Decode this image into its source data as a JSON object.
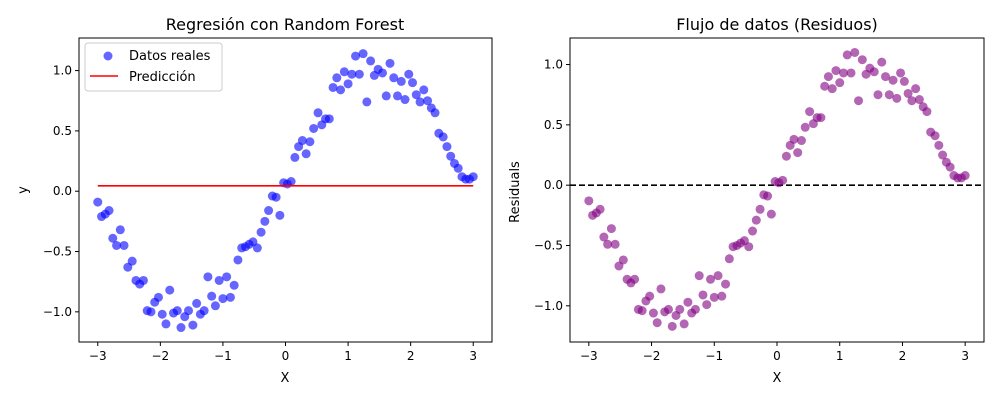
{
  "chart_data": [
    {
      "type": "scatter",
      "title": "Regresión con Random Forest",
      "xlabel": "X",
      "ylabel": "y",
      "xlim": [
        -3.3,
        3.3
      ],
      "ylim": [
        -1.25,
        1.27
      ],
      "xticks": [
        -3,
        -2,
        -1,
        0,
        1,
        2,
        3
      ],
      "yticks": [
        -1.0,
        -0.5,
        0.0,
        0.5,
        1.0
      ],
      "grid": false,
      "legend": "top-left",
      "series": [
        {
          "name": "Datos reales",
          "kind": "scatter",
          "color": "#0000ff",
          "x": [
            -3.0,
            -2.94,
            -2.88,
            -2.82,
            -2.76,
            -2.7,
            -2.64,
            -2.58,
            -2.52,
            -2.45,
            -2.39,
            -2.33,
            -2.27,
            -2.21,
            -2.15,
            -2.09,
            -2.03,
            -1.97,
            -1.91,
            -1.85,
            -1.79,
            -1.73,
            -1.67,
            -1.61,
            -1.55,
            -1.48,
            -1.42,
            -1.36,
            -1.3,
            -1.24,
            -1.18,
            -1.12,
            -1.06,
            -1.0,
            -0.94,
            -0.88,
            -0.82,
            -0.76,
            -0.7,
            -0.64,
            -0.58,
            -0.52,
            -0.45,
            -0.39,
            -0.33,
            -0.27,
            -0.21,
            -0.15,
            -0.09,
            -0.03,
            0.03,
            0.09,
            0.15,
            0.21,
            0.27,
            0.33,
            0.39,
            0.45,
            0.52,
            0.58,
            0.64,
            0.7,
            0.76,
            0.82,
            0.88,
            0.94,
            1.0,
            1.06,
            1.12,
            1.18,
            1.24,
            1.3,
            1.36,
            1.42,
            1.48,
            1.55,
            1.61,
            1.67,
            1.73,
            1.79,
            1.85,
            1.91,
            1.97,
            2.03,
            2.09,
            2.15,
            2.21,
            2.27,
            2.33,
            2.39,
            2.45,
            2.52,
            2.58,
            2.64,
            2.7,
            2.76,
            2.82,
            2.88,
            2.94,
            3.0
          ],
          "y": [
            -0.09,
            -0.21,
            -0.19,
            -0.16,
            -0.39,
            -0.45,
            -0.32,
            -0.45,
            -0.63,
            -0.58,
            -0.74,
            -0.77,
            -0.74,
            -0.99,
            -1.0,
            -0.92,
            -0.88,
            -1.02,
            -1.1,
            -0.82,
            -1.01,
            -0.99,
            -1.13,
            -1.04,
            -0.99,
            -1.11,
            -0.93,
            -1.02,
            -0.99,
            -0.71,
            -0.87,
            -0.95,
            -0.74,
            -0.89,
            -0.71,
            -0.88,
            -0.78,
            -0.57,
            -0.47,
            -0.46,
            -0.44,
            -0.42,
            -0.47,
            -0.34,
            -0.25,
            -0.16,
            -0.04,
            -0.05,
            -0.2,
            0.07,
            0.06,
            0.08,
            0.28,
            0.37,
            0.42,
            0.31,
            0.41,
            0.52,
            0.65,
            0.55,
            0.6,
            0.6,
            0.86,
            0.94,
            0.84,
            0.99,
            0.89,
            0.97,
            1.12,
            0.97,
            1.14,
            0.74,
            1.08,
            0.96,
            1.01,
            0.98,
            0.79,
            1.06,
            0.94,
            0.79,
            0.91,
            0.76,
            0.97,
            0.9,
            0.8,
            0.74,
            0.84,
            0.75,
            0.69,
            0.65,
            0.48,
            0.45,
            0.37,
            0.29,
            0.23,
            0.19,
            0.12,
            0.1,
            0.1,
            0.12
          ]
        },
        {
          "name": "Predicción",
          "kind": "line",
          "color": "#ff0000",
          "x": [
            -3.0,
            3.0
          ],
          "y": [
            0.045,
            0.045
          ]
        }
      ]
    },
    {
      "type": "scatter",
      "title": "Flujo de datos (Residuos)",
      "xlabel": "X",
      "ylabel": "Residuals",
      "xlim": [
        -3.3,
        3.3
      ],
      "ylim": [
        -1.3,
        1.22
      ],
      "xticks": [
        -3,
        -2,
        -1,
        0,
        1,
        2,
        3
      ],
      "yticks": [
        -1.0,
        -0.5,
        0.0,
        0.5,
        1.0
      ],
      "grid": false,
      "reference_line": {
        "y": 0.0,
        "style": "dashed",
        "color": "#000000"
      },
      "series": [
        {
          "kind": "scatter",
          "color": "#800080",
          "x": [
            -3.0,
            -2.94,
            -2.88,
            -2.82,
            -2.76,
            -2.7,
            -2.64,
            -2.58,
            -2.52,
            -2.45,
            -2.39,
            -2.33,
            -2.27,
            -2.21,
            -2.15,
            -2.09,
            -2.03,
            -1.97,
            -1.91,
            -1.85,
            -1.79,
            -1.73,
            -1.67,
            -1.61,
            -1.55,
            -1.48,
            -1.42,
            -1.36,
            -1.3,
            -1.24,
            -1.18,
            -1.12,
            -1.06,
            -1.0,
            -0.94,
            -0.88,
            -0.82,
            -0.76,
            -0.7,
            -0.64,
            -0.58,
            -0.52,
            -0.45,
            -0.39,
            -0.33,
            -0.27,
            -0.21,
            -0.15,
            -0.09,
            -0.03,
            0.03,
            0.09,
            0.15,
            0.21,
            0.27,
            0.33,
            0.39,
            0.45,
            0.52,
            0.58,
            0.64,
            0.7,
            0.76,
            0.82,
            0.88,
            0.94,
            1.0,
            1.06,
            1.12,
            1.18,
            1.24,
            1.3,
            1.36,
            1.42,
            1.48,
            1.55,
            1.61,
            1.67,
            1.73,
            1.79,
            1.85,
            1.91,
            1.97,
            2.03,
            2.09,
            2.15,
            2.21,
            2.27,
            2.33,
            2.39,
            2.45,
            2.52,
            2.58,
            2.64,
            2.7,
            2.76,
            2.82,
            2.88,
            2.94,
            3.0
          ],
          "y": [
            -0.13,
            -0.25,
            -0.23,
            -0.2,
            -0.43,
            -0.49,
            -0.36,
            -0.49,
            -0.67,
            -0.62,
            -0.78,
            -0.81,
            -0.78,
            -1.03,
            -1.04,
            -0.96,
            -0.92,
            -1.06,
            -1.14,
            -0.86,
            -1.05,
            -1.03,
            -1.17,
            -1.08,
            -1.03,
            -1.15,
            -0.97,
            -1.06,
            -1.03,
            -0.75,
            -0.91,
            -0.99,
            -0.78,
            -0.93,
            -0.75,
            -0.92,
            -0.82,
            -0.61,
            -0.51,
            -0.5,
            -0.48,
            -0.46,
            -0.51,
            -0.38,
            -0.29,
            -0.2,
            -0.08,
            -0.09,
            -0.24,
            0.03,
            0.02,
            0.04,
            0.24,
            0.33,
            0.38,
            0.27,
            0.37,
            0.48,
            0.61,
            0.51,
            0.56,
            0.56,
            0.82,
            0.9,
            0.8,
            0.95,
            0.85,
            0.93,
            1.08,
            0.93,
            1.1,
            0.7,
            1.04,
            0.92,
            0.97,
            0.94,
            0.75,
            1.02,
            0.9,
            0.75,
            0.87,
            0.72,
            0.93,
            0.86,
            0.76,
            0.7,
            0.8,
            0.71,
            0.65,
            0.61,
            0.44,
            0.41,
            0.33,
            0.25,
            0.19,
            0.15,
            0.08,
            0.06,
            0.06,
            0.08
          ]
        }
      ]
    }
  ]
}
